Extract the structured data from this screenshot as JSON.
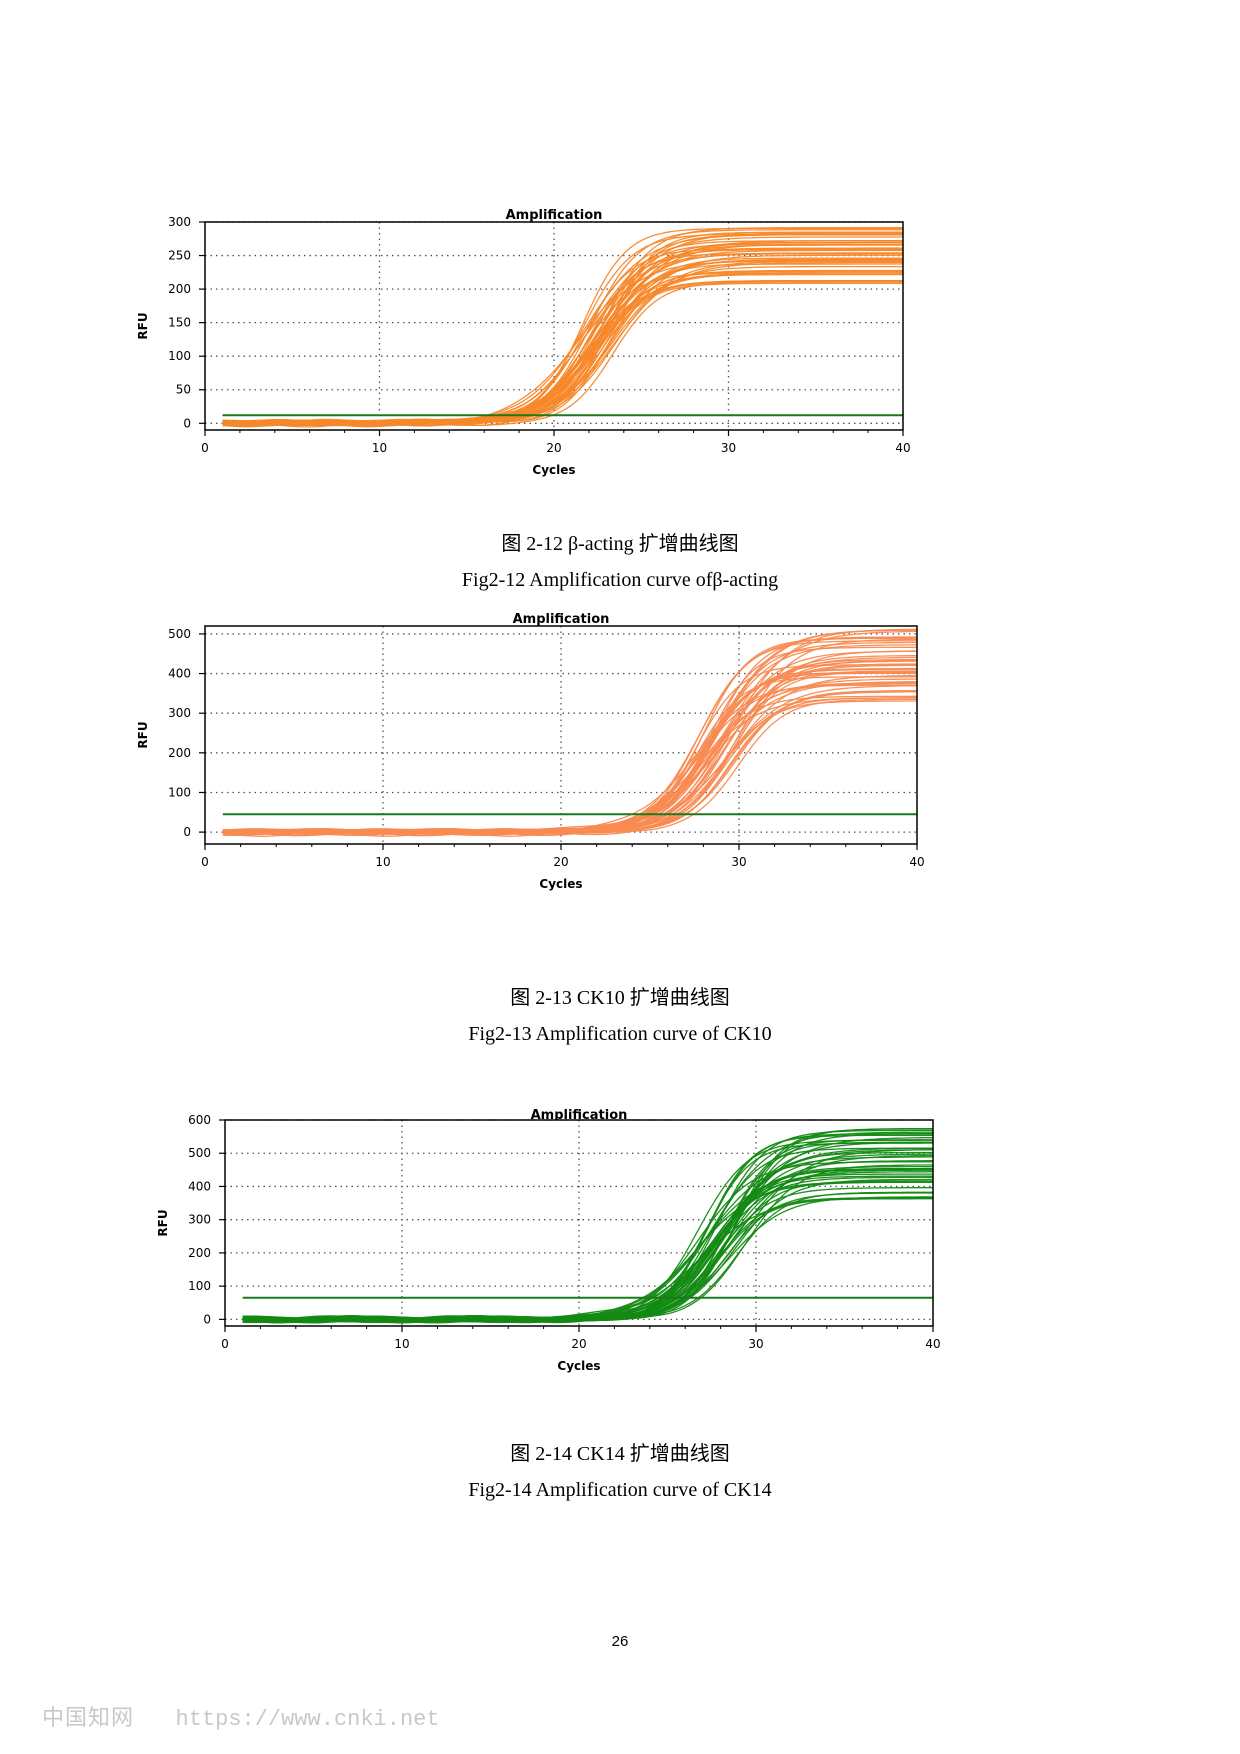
{
  "charts": [
    {
      "caption_cn": "图 2-12 β-acting 扩增曲线图",
      "caption_en": "Fig2-12 Amplification curve ofβ-acting"
    },
    {
      "caption_cn": "图 2-13 CK10 扩增曲线图",
      "caption_en": "Fig2-13 Amplification curve of CK10"
    },
    {
      "caption_cn": "图 2-14 CK14 扩增曲线图",
      "caption_en": "Fig2-14 Amplification curve of CK14"
    }
  ],
  "chart_data": [
    {
      "type": "line",
      "title": "Amplification",
      "xlabel": "Cycles",
      "ylabel": "RFU",
      "xlim": [
        0,
        40
      ],
      "ylim": [
        -10,
        300
      ],
      "xticks": [
        0,
        10,
        20,
        30,
        40
      ],
      "yticks": [
        0,
        50,
        100,
        150,
        200,
        250,
        300
      ],
      "grid": true,
      "color": "#f7882a",
      "threshold": {
        "y": 12,
        "color": "#1a7a1a"
      },
      "series_summary": {
        "count": 44,
        "x_start": 1,
        "x_end": 40,
        "midpoint_cycles": [
          21.5,
          23.5
        ],
        "plateau_rfu": [
          205,
          290
        ]
      }
    },
    {
      "type": "line",
      "title": "Amplification",
      "xlabel": "Cycles",
      "ylabel": "RFU",
      "xlim": [
        0,
        40
      ],
      "ylim": [
        -30,
        520
      ],
      "xticks": [
        0,
        10,
        20,
        30,
        40
      ],
      "yticks": [
        0,
        100,
        200,
        300,
        400,
        500
      ],
      "grid": true,
      "color": "#f88a52",
      "threshold": {
        "y": 45,
        "color": "#1a7a1a"
      },
      "series_summary": {
        "count": 44,
        "x_start": 1,
        "x_end": 40,
        "midpoint_cycles": [
          27.5,
          30
        ],
        "plateau_rfu": [
          330,
          515
        ]
      }
    },
    {
      "type": "line",
      "title": "Amplification",
      "xlabel": "Cycles",
      "ylabel": "RFU",
      "xlim": [
        0,
        40
      ],
      "ylim": [
        -20,
        600
      ],
      "xticks": [
        0,
        10,
        20,
        30,
        40
      ],
      "yticks": [
        0,
        100,
        200,
        300,
        400,
        500,
        600
      ],
      "grid": true,
      "color": "#138a13",
      "threshold": {
        "y": 65,
        "color": "#1a7a1a"
      },
      "series_summary": {
        "count": 44,
        "x_start": 1,
        "x_end": 40,
        "midpoint_cycles": [
          26.5,
          29.5
        ],
        "plateau_rfu": [
          350,
          580
        ]
      }
    }
  ],
  "page_number": "26",
  "watermark": {
    "site_name": "中国知网",
    "url": "https://www.cnki.net"
  }
}
